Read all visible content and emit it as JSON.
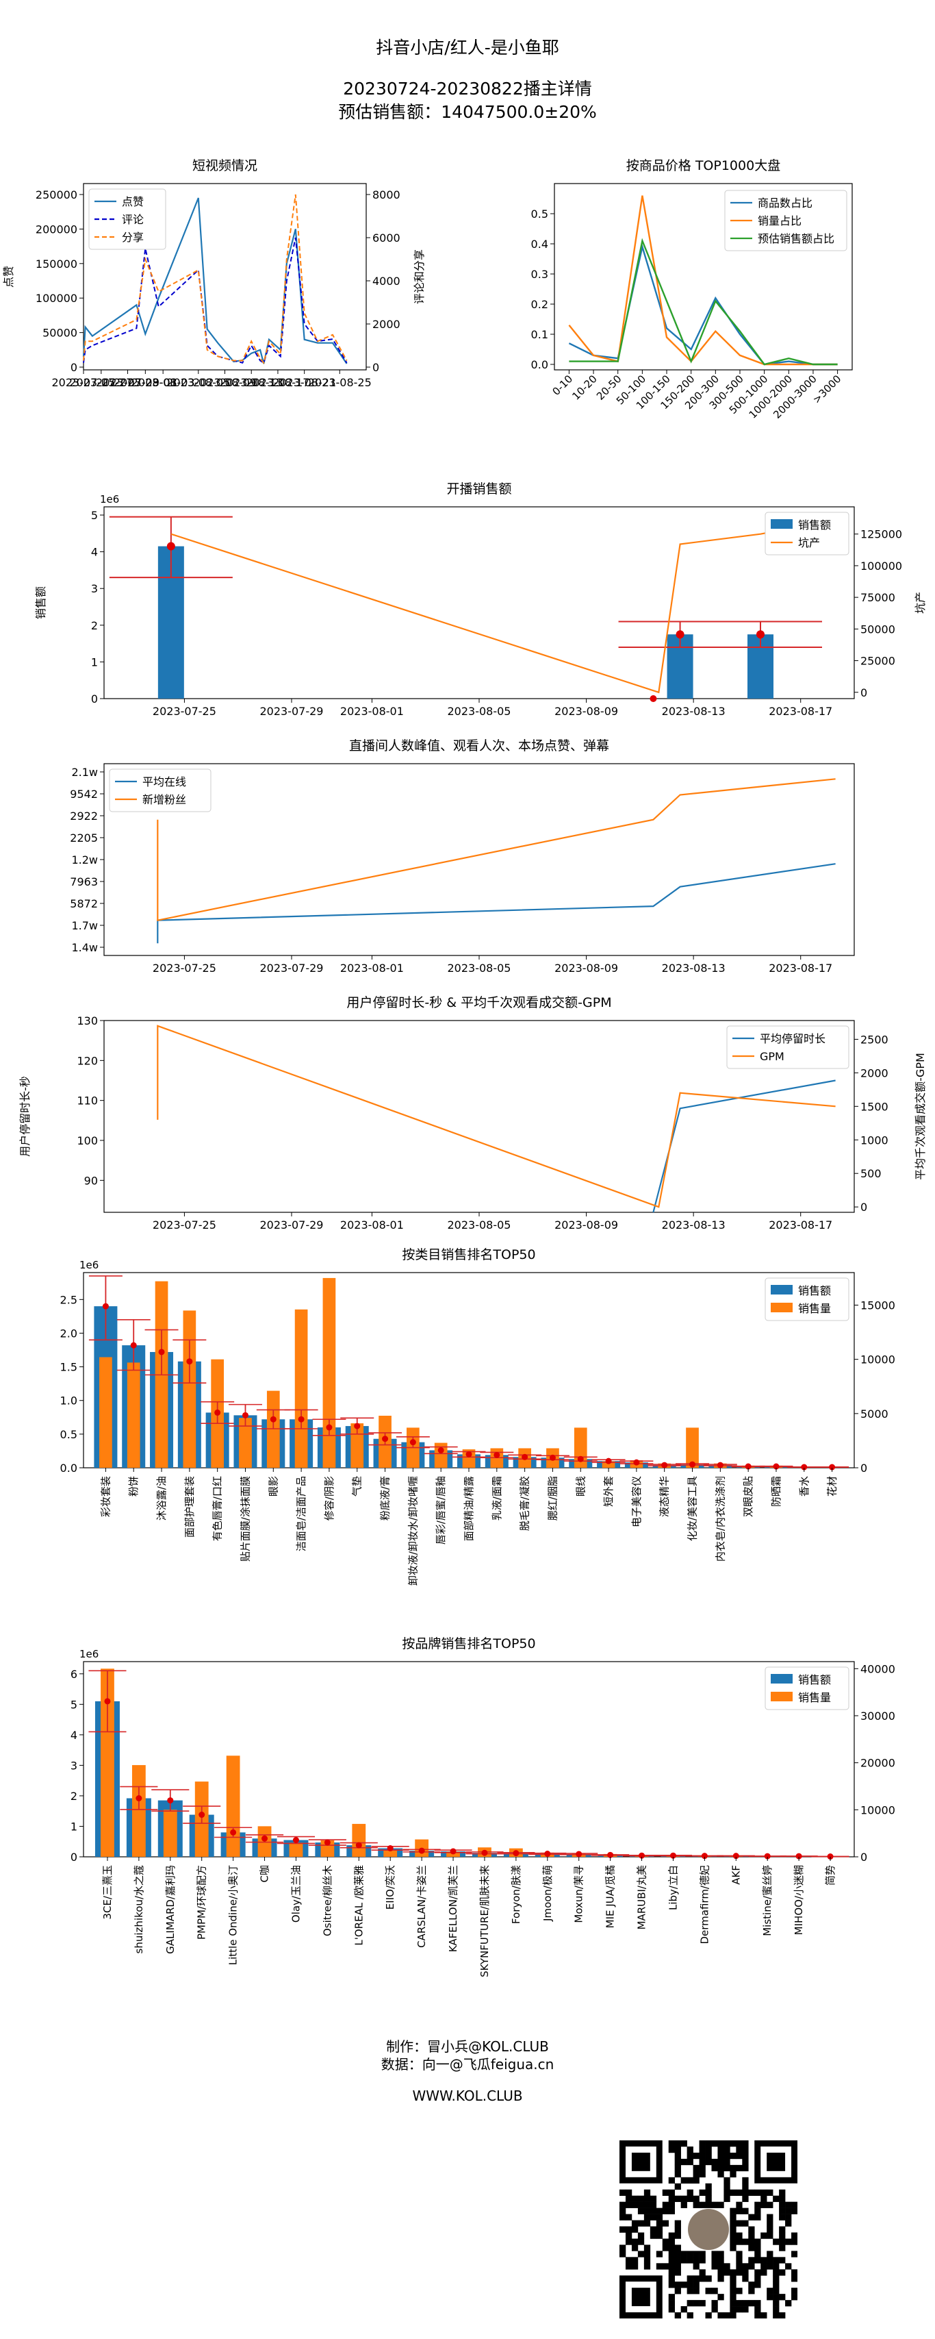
{
  "header": {
    "line1": "抖音小店/红人-是小鱼耶",
    "line2": "20230724-20230822播主详情",
    "line3": "预估销售额：14047500.0±20%"
  },
  "footer": {
    "line1": "制作：冒小兵@KOL.CLUB",
    "line2": "数据：向一@飞瓜feigua.cn",
    "line3": "WWW.KOL.CLUB"
  },
  "chart_data": [
    {
      "id": "short_video",
      "type": "line",
      "title": "短视频情况",
      "ylabel": "点赞",
      "y2label": "评论和分享",
      "ylim": [
        0,
        250000
      ],
      "y2lim": [
        0,
        8000
      ],
      "yticks": [
        "0",
        "50000",
        "100000",
        "150000",
        "200000",
        "250000"
      ],
      "y2ticks": [
        "0",
        "2000",
        "4000",
        "6000",
        "8000"
      ],
      "xlim": [
        0,
        32
      ],
      "xticks": [
        {
          "pos": 0,
          "label": "2023-07-25"
        },
        {
          "pos": 2,
          "label": "2023-07-27"
        },
        {
          "pos": 5,
          "label": "2023-07-29"
        },
        {
          "pos": 7,
          "label": "2023-08-01"
        },
        {
          "pos": 9,
          "label": "2023-08-03"
        },
        {
          "pos": 13,
          "label": "2023-08-05"
        },
        {
          "pos": 16,
          "label": "2023-08-09"
        },
        {
          "pos": 19,
          "label": "2023-08-13"
        },
        {
          "pos": 22,
          "label": "2023-08-17"
        },
        {
          "pos": 25,
          "label": "2023-08-21"
        },
        {
          "pos": 29,
          "label": "2023-08-25"
        }
      ],
      "legend": [
        "点赞",
        "评论",
        "分享"
      ],
      "series": [
        {
          "name": "点赞",
          "axis": "left",
          "x": [
            0,
            0.2,
            1,
            6,
            7,
            8.5,
            13,
            14,
            15.2,
            17,
            18,
            19,
            20,
            20.4,
            21,
            22.3,
            23,
            24,
            25,
            26.5,
            28.2,
            29.8
          ],
          "values": [
            15000,
            58000,
            45000,
            90000,
            48000,
            100000,
            245000,
            55000,
            35000,
            8000,
            10000,
            20000,
            25000,
            5000,
            40000,
            25000,
            150000,
            200000,
            40000,
            35000,
            35000,
            5000
          ]
        },
        {
          "name": "评论",
          "axis": "left2",
          "x": [
            0,
            0.2,
            1,
            6,
            7,
            8.5,
            13,
            14,
            15.2,
            17,
            18,
            19,
            20,
            20.4,
            21,
            22.3,
            23,
            24,
            25,
            26.5,
            28.2,
            29.8
          ],
          "values": [
            200,
            800,
            1000,
            1800,
            5500,
            2800,
            4500,
            1000,
            500,
            300,
            200,
            1000,
            300,
            200,
            1000,
            500,
            4000,
            6000,
            2000,
            1200,
            1300,
            200
          ]
        },
        {
          "name": "分享",
          "axis": "left2",
          "x": [
            0,
            0.2,
            1,
            6,
            7,
            8.5,
            13,
            14,
            15.2,
            17,
            18,
            19,
            20,
            20.4,
            21,
            22.3,
            23,
            24,
            25,
            26.5,
            28.2,
            29.8
          ],
          "values": [
            300,
            1200,
            1200,
            2200,
            5000,
            3500,
            4500,
            800,
            500,
            300,
            300,
            1200,
            400,
            200,
            1200,
            600,
            5000,
            8000,
            2500,
            1200,
            1500,
            300
          ]
        }
      ]
    },
    {
      "id": "price_top1000",
      "type": "line",
      "title": "按商品价格 TOP1000大盘",
      "ylim": [
        0,
        0.6
      ],
      "yticks": [
        "0.0",
        "0.1",
        "0.2",
        "0.3",
        "0.4",
        "0.5"
      ],
      "categories": [
        "0-10",
        "10-20",
        "20-50",
        "50-100",
        "100-150",
        "150-200",
        "200-300",
        "300-500",
        "500-1000",
        "1000-2000",
        "2000-3000",
        ">3000"
      ],
      "legend": [
        "商品数占比",
        "销量占比",
        "预估销售额占比"
      ],
      "series": [
        {
          "name": "商品数占比",
          "values": [
            0.07,
            0.03,
            0.02,
            0.39,
            0.12,
            0.05,
            0.22,
            0.1,
            0.0,
            0.01,
            0.0,
            0.0
          ]
        },
        {
          "name": "销量占比",
          "values": [
            0.13,
            0.03,
            0.01,
            0.56,
            0.09,
            0.01,
            0.11,
            0.03,
            0.0,
            0.0,
            0.0,
            0.0
          ]
        },
        {
          "name": "预估销售额占比",
          "values": [
            0.01,
            0.01,
            0.01,
            0.41,
            0.21,
            0.01,
            0.21,
            0.11,
            0.0,
            0.02,
            0.0,
            0.0
          ]
        }
      ]
    },
    {
      "id": "live_sales",
      "type": "bar",
      "title": "开播销售额",
      "ylabel": "销售额",
      "y2label": "坑产",
      "multiplier": "1e6",
      "ylim": [
        0,
        5
      ],
      "yticks": [
        "0",
        "1",
        "2",
        "3",
        "4",
        "5"
      ],
      "y2lim": [
        -5000,
        140000
      ],
      "y2ticks": [
        "0",
        "25000",
        "50000",
        "75000",
        "100000",
        "125000"
      ],
      "xlim": [
        -3,
        25
      ],
      "xticks": [
        {
          "pos": 0,
          "label": "2023-07-25"
        },
        {
          "pos": 4,
          "label": "2023-07-29"
        },
        {
          "pos": 7,
          "label": "2023-08-01"
        },
        {
          "pos": 11,
          "label": "2023-08-05"
        },
        {
          "pos": 15,
          "label": "2023-08-09"
        },
        {
          "pos": 19,
          "label": "2023-08-13"
        },
        {
          "pos": 23,
          "label": "2023-08-17"
        }
      ],
      "legend": [
        "销售额",
        "坑产"
      ],
      "bars": [
        {
          "x": -0.5,
          "value": 4.15,
          "err_low": 3.3,
          "err_high": 4.95
        },
        {
          "x": 18.5,
          "value": 1.75,
          "err_low": 1.4,
          "err_high": 2.1
        },
        {
          "x": 21.5,
          "value": 1.75,
          "err_low": 1.4,
          "err_high": 2.1
        }
      ],
      "extra_points": [
        {
          "x": 17.5,
          "value": 0
        }
      ],
      "line": {
        "name": "坑产",
        "x": [
          -0.5,
          17.7,
          18.5,
          21.5,
          24.3
        ],
        "values": [
          125000,
          0,
          117000,
          125000,
          136000
        ]
      }
    },
    {
      "id": "live_viewers",
      "type": "line",
      "title": "直播间人数峰值、观看人次、本场点赞、弹幕",
      "yticks": [
        "1.4w",
        "1.7w",
        "5872",
        "7963",
        "1.2w",
        "2205",
        "2922",
        "9542",
        "2.1w"
      ],
      "xlim": [
        -3,
        25
      ],
      "xticks": [
        {
          "pos": 0,
          "label": "2023-07-25"
        },
        {
          "pos": 4,
          "label": "2023-07-29"
        },
        {
          "pos": 7,
          "label": "2023-08-01"
        },
        {
          "pos": 11,
          "label": "2023-08-05"
        },
        {
          "pos": 15,
          "label": "2023-08-09"
        },
        {
          "pos": 19,
          "label": "2023-08-13"
        },
        {
          "pos": 23,
          "label": "2023-08-17"
        }
      ],
      "legend": [
        "平均在线",
        "新增粉丝"
      ],
      "series": [
        {
          "name": "平均在线",
          "x": [
            -1,
            -1,
            17.5,
            18.5,
            24.3
          ],
          "values": [
            0.03,
            0.16,
            0.24,
            0.35,
            0.48
          ]
        },
        {
          "name": "新增粉丝",
          "x": [
            -1,
            -1,
            17.5,
            18.5,
            24.3
          ],
          "values": [
            0.73,
            0.16,
            0.73,
            0.87,
            0.96
          ]
        }
      ]
    },
    {
      "id": "stay_gpm",
      "type": "line",
      "title": "用户停留时长-秒 & 平均千次观看成交额-GPM",
      "ylabel": "用户停留时长-秒",
      "y2label": "平均千次观看成交额-GPM",
      "ylim": [
        82,
        130
      ],
      "yticks": [
        "90",
        "100",
        "110",
        "120",
        "130"
      ],
      "y2lim": [
        -80,
        2780
      ],
      "y2ticks": [
        "0",
        "500",
        "1000",
        "1500",
        "2000",
        "2500"
      ],
      "xlim": [
        -3,
        25
      ],
      "xticks": [
        {
          "pos": 0,
          "label": "2023-07-25"
        },
        {
          "pos": 4,
          "label": "2023-07-29"
        },
        {
          "pos": 7,
          "label": "2023-08-01"
        },
        {
          "pos": 11,
          "label": "2023-08-05"
        },
        {
          "pos": 15,
          "label": "2023-08-09"
        },
        {
          "pos": 19,
          "label": "2023-08-13"
        },
        {
          "pos": 23,
          "label": "2023-08-17"
        }
      ],
      "legend": [
        "平均停留时长",
        "GPM"
      ],
      "series": [
        {
          "name": "平均停留时长",
          "axis": "left",
          "x": [
            17.5,
            18.5,
            24.3
          ],
          "values": [
            82,
            108,
            115
          ]
        },
        {
          "name": "GPM",
          "axis": "right",
          "x": [
            -1,
            -1,
            17.7,
            18.5,
            24.3
          ],
          "values": [
            1300,
            2700,
            0,
            1700,
            1500
          ]
        }
      ]
    },
    {
      "id": "category_top50",
      "type": "bar",
      "title": "按类目销售排名TOP50",
      "multiplier": "1e6",
      "ylim": [
        0,
        2.9
      ],
      "yticks": [
        "0.0",
        "0.5",
        "1.0",
        "1.5",
        "2.0",
        "2.5"
      ],
      "y2lim": [
        0,
        18000
      ],
      "y2ticks": [
        "0",
        "5000",
        "10000",
        "15000"
      ],
      "legend": [
        "销售额",
        "销售量"
      ],
      "categories": [
        "彩妆套装",
        "粉饼",
        "沐浴露/油",
        "面部护理套装",
        "有色唇膏/口红",
        "贴片面膜/涂抹面膜",
        "眼影",
        "洁面皂/洁面产品",
        "修容/阴影",
        "气垫",
        "粉底液/膏",
        "卸妆液/卸妆水/卸妆啫喱",
        "唇彩/唇蜜/唇釉",
        "面部精油/精露",
        "乳液/面霜",
        "脱毛膏/凝胶",
        "腮红/胭脂",
        "眼线",
        "短外套",
        "电子美容仪",
        "液态精华",
        "化妆/美容工具",
        "内衣皂/内衣洗涤剂",
        "双眼皮贴",
        "防晒霜",
        "香水",
        "花材"
      ],
      "sales": [
        2.4,
        1.82,
        1.72,
        1.58,
        0.82,
        0.78,
        0.72,
        0.72,
        0.6,
        0.62,
        0.43,
        0.38,
        0.26,
        0.2,
        0.19,
        0.16,
        0.15,
        0.13,
        0.1,
        0.08,
        0.04,
        0.05,
        0.04,
        0.02,
        0.02,
        0.01,
        0.01
      ],
      "volume": [
        10200,
        9700,
        17200,
        14500,
        10000,
        4600,
        7100,
        14600,
        17500,
        4100,
        4800,
        3700,
        2300,
        1700,
        1800,
        1800,
        1800,
        3700,
        600,
        700,
        400,
        3700,
        400,
        200,
        200,
        100,
        100
      ],
      "err_low": [
        1.9,
        1.45,
        1.38,
        1.26,
        0.66,
        0.62,
        0.58,
        0.58,
        0.48,
        0.5,
        0.34,
        0.3,
        0.21,
        0.16,
        0.15,
        0.13,
        0.12,
        0.1,
        0.08,
        0.06,
        0.03,
        0.04,
        0.03,
        0.016,
        0.016,
        0.008,
        0.008
      ],
      "err_high": [
        2.85,
        2.2,
        2.05,
        1.9,
        0.98,
        0.94,
        0.86,
        0.86,
        0.72,
        0.74,
        0.52,
        0.46,
        0.31,
        0.24,
        0.23,
        0.19,
        0.18,
        0.16,
        0.12,
        0.1,
        0.05,
        0.06,
        0.05,
        0.024,
        0.024,
        0.012,
        0.012
      ]
    },
    {
      "id": "brand_top50",
      "type": "bar",
      "title": "按品牌销售排名TOP50",
      "multiplier": "1e6",
      "ylim": [
        0,
        6.4
      ],
      "yticks": [
        "0",
        "1",
        "2",
        "3",
        "4",
        "5",
        "6"
      ],
      "y2lim": [
        0,
        41500
      ],
      "y2ticks": [
        "0",
        "10000",
        "20000",
        "30000",
        "40000"
      ],
      "legend": [
        "销售额",
        "销售量"
      ],
      "categories": [
        "3CE/三熹玉",
        "shuizhikou/水之蔻",
        "GALIMARD/嘉利玛",
        "PMPM/环球配方",
        "Little Ondine/小奥汀",
        "C咖",
        "Olay/玉兰油",
        "Ositree/柳丝木",
        "L'OREAL /欧莱雅",
        "EIIO/奕沃",
        "CARSLAN/卡姿兰",
        "KAFELLON/凯芙兰",
        "SKYNFUTURE/肌肤未来",
        "Foryon/肤漾",
        "Jmoon/极萌",
        "Moxun/茉寻",
        "MIE JUA/觅橘",
        "MARUBI/丸美",
        "Liby/立白",
        "Dermafirm/德妃",
        "AKF",
        "Mistine/蜜丝婷",
        "MIHOO/小迷糊",
        "简势"
      ],
      "sales": [
        5.1,
        1.92,
        1.85,
        1.38,
        0.8,
        0.6,
        0.55,
        0.47,
        0.38,
        0.28,
        0.2,
        0.18,
        0.13,
        0.12,
        0.1,
        0.09,
        0.06,
        0.04,
        0.04,
        0.03,
        0.03,
        0.02,
        0.02,
        0.01
      ],
      "volume": [
        40000,
        19500,
        10000,
        16000,
        21500,
        6500,
        3000,
        3500,
        7000,
        1300,
        3700,
        1100,
        2000,
        1800,
        900,
        800,
        600,
        200,
        300,
        200,
        200,
        150,
        100,
        100
      ],
      "err_low": [
        4.1,
        1.55,
        1.5,
        1.1,
        0.64,
        0.48,
        0.44,
        0.38,
        0.3,
        0.22,
        0.16,
        0.14,
        0.1,
        0.1,
        0.08,
        0.07,
        0.05,
        0.03,
        0.03,
        0.024,
        0.024,
        0.016,
        0.016,
        0.008
      ],
      "err_high": [
        6.1,
        2.3,
        2.2,
        1.66,
        0.96,
        0.72,
        0.66,
        0.56,
        0.46,
        0.34,
        0.24,
        0.22,
        0.16,
        0.14,
        0.12,
        0.11,
        0.07,
        0.05,
        0.05,
        0.036,
        0.036,
        0.024,
        0.024,
        0.012
      ]
    }
  ]
}
